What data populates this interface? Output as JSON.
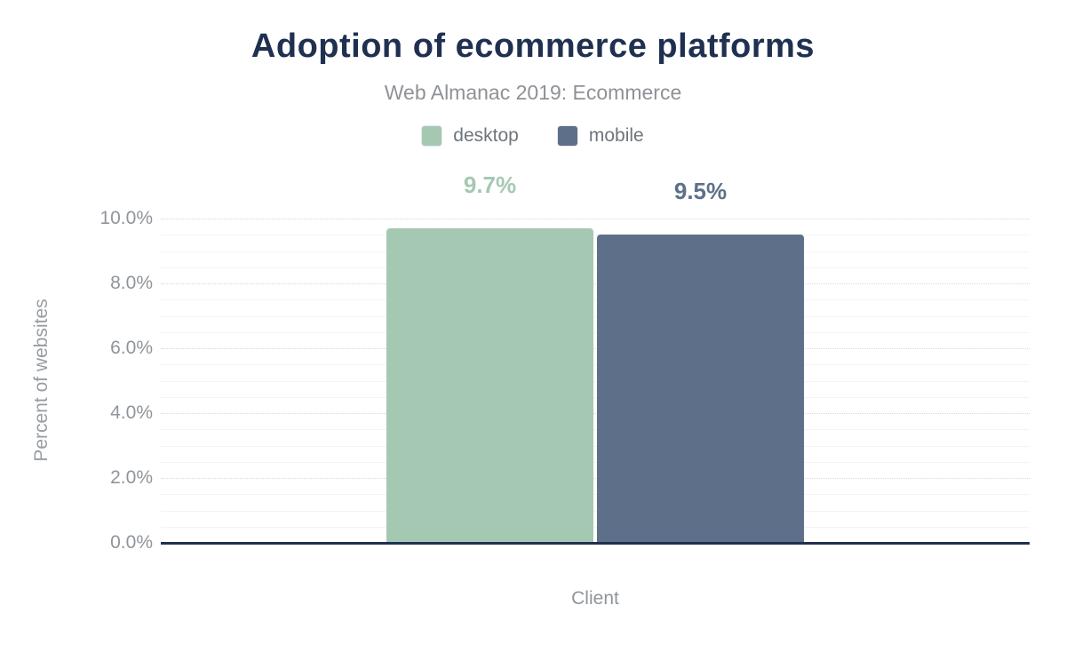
{
  "chart_data": {
    "type": "bar",
    "title": "Adoption of ecommerce platforms",
    "subtitle": "Web Almanac 2019: Ecommerce",
    "xlabel": "Client",
    "ylabel": "Percent of websites",
    "ylim": [
      0,
      10
    ],
    "grid": true,
    "legend_position": "top",
    "y_ticks": [
      {
        "value": 0,
        "label": "0.0%"
      },
      {
        "value": 2,
        "label": "2.0%"
      },
      {
        "value": 4,
        "label": "4.0%"
      },
      {
        "value": 6,
        "label": "6.0%"
      },
      {
        "value": 8,
        "label": "8.0%"
      },
      {
        "value": 10,
        "label": "10.0%"
      }
    ],
    "minor_tick_step": 0.5,
    "categories": [
      "Client"
    ],
    "series": [
      {
        "name": "desktop",
        "values": [
          9.7
        ],
        "data_labels": [
          "9.7%"
        ],
        "color": "#a5c8b2"
      },
      {
        "name": "mobile",
        "values": [
          9.5
        ],
        "data_labels": [
          "9.5%"
        ],
        "color": "#5e7089"
      }
    ]
  },
  "colors": {
    "title_text": "#1f3050",
    "subtitle_text": "#8e9297",
    "axis_text": "#8f959b",
    "legend_text": "#6f757d",
    "axis_line": "#1f3050",
    "major_grid": "#d6d8da",
    "minor_grid": "#f3f4f5",
    "background": "#ffffff"
  }
}
